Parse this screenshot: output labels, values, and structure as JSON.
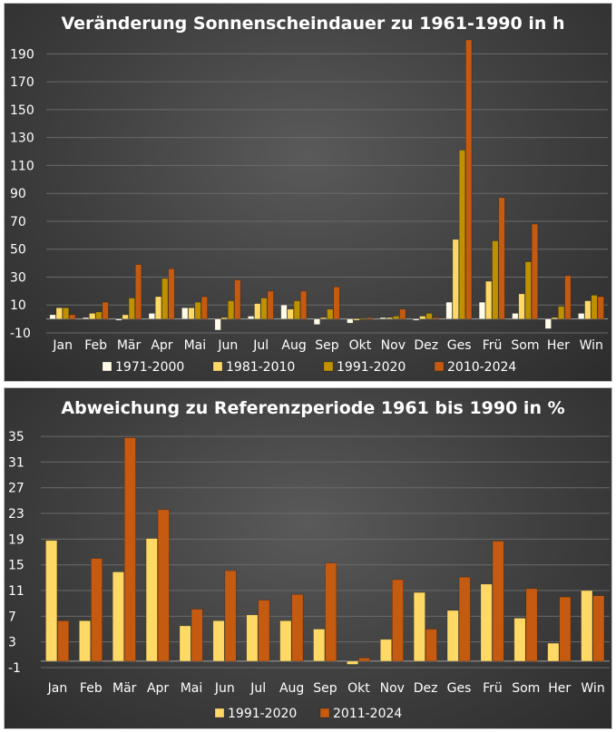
{
  "chart_data": [
    {
      "type": "bar",
      "title": "Veränderung Sonnenscheindauer zu 1961-1990 in h",
      "categories": [
        "Jan",
        "Feb",
        "Mär",
        "Apr",
        "Mai",
        "Jun",
        "Jul",
        "Aug",
        "Sep",
        "Okt",
        "Nov",
        "Dez",
        "Ges",
        "Frü",
        "Som",
        "Her",
        "Win"
      ],
      "ylim": [
        -10,
        200
      ],
      "yticks": [
        -10,
        10,
        30,
        50,
        70,
        90,
        110,
        130,
        150,
        170,
        190
      ],
      "legend_position": "bottom",
      "series": [
        {
          "name": "1971-2000",
          "color": "#fffbe6",
          "values": [
            3,
            1,
            -1,
            4,
            8,
            -8,
            2,
            10,
            -4,
            -3,
            1,
            -1,
            12,
            12,
            4,
            -7,
            4
          ]
        },
        {
          "name": "1981-2010",
          "color": "#ffd966",
          "values": [
            8,
            4,
            3,
            16,
            8,
            1,
            11,
            7,
            1,
            -1,
            1,
            2,
            57,
            27,
            18,
            1,
            13
          ]
        },
        {
          "name": "1991-2020",
          "color": "#bf9000",
          "values": [
            8,
            5,
            15,
            29,
            12,
            13,
            15,
            13,
            7,
            0,
            2,
            4,
            121,
            56,
            41,
            9,
            17
          ]
        },
        {
          "name": "2010-2024",
          "color": "#c55a11",
          "values": [
            3,
            12,
            39,
            36,
            16,
            28,
            20,
            20,
            23,
            1,
            7,
            1,
            200,
            87,
            68,
            31,
            16
          ]
        }
      ]
    },
    {
      "type": "bar",
      "title": "Abweichung zu Referenzperiode 1961 bis 1990 in %",
      "categories": [
        "Jan",
        "Feb",
        "Mär",
        "Apr",
        "Mai",
        "Jun",
        "Jul",
        "Aug",
        "Sep",
        "Okt",
        "Nov",
        "Dez",
        "Ges",
        "Frü",
        "Som",
        "Her",
        "Win"
      ],
      "ylim": [
        -1,
        36
      ],
      "yticks": [
        -1,
        3,
        7,
        11,
        15,
        19,
        23,
        27,
        31,
        35
      ],
      "legend_position": "bottom",
      "series": [
        {
          "name": "1991-2020",
          "color": "#ffd966",
          "values": [
            18.8,
            6.3,
            13.9,
            19.1,
            5.5,
            6.3,
            7.2,
            6.3,
            5.0,
            -0.5,
            3.4,
            10.7,
            7.9,
            12.0,
            6.7,
            2.8,
            11.0
          ]
        },
        {
          "name": "2011-2024",
          "color": "#c55a11",
          "values": [
            6.3,
            16.0,
            34.8,
            23.6,
            8.1,
            14.1,
            9.5,
            10.4,
            15.3,
            0.5,
            12.7,
            5.0,
            13.1,
            18.7,
            11.3,
            10.0,
            10.2
          ]
        }
      ]
    }
  ]
}
